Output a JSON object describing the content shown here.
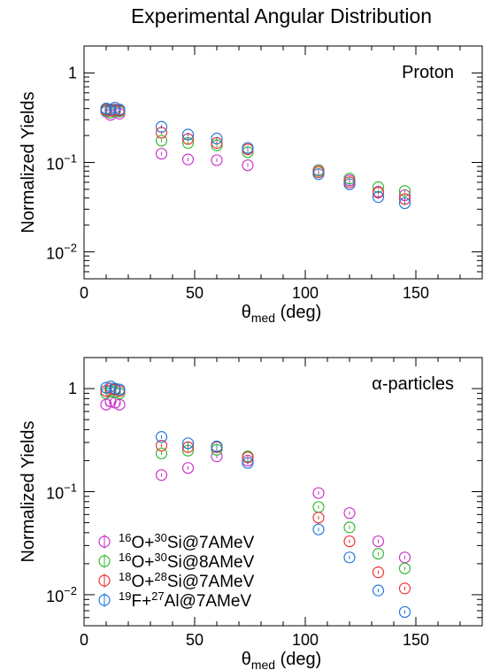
{
  "figure_title": "Experimental Angular Distribution",
  "colors": {
    "16O+30Si@7AMeV": "#cc33cc",
    "16O+30Si@8AMeV": "#33bb33",
    "18O+28Si@7AMeV": "#ee3333",
    "19F+27Al@7AMeV": "#2277dd"
  },
  "legend_entries": [
    {
      "pre": "16",
      "a": "O+",
      "pre2": "30",
      "b": "Si@7AMeV",
      "color": "#cc33cc"
    },
    {
      "pre": "16",
      "a": "O+",
      "pre2": "30",
      "b": "Si@8AMeV",
      "color": "#33bb33"
    },
    {
      "pre": "18",
      "a": "O+",
      "pre2": "28",
      "b": "Si@7AMeV",
      "color": "#ee3333"
    },
    {
      "pre": "19",
      "a": "F+",
      "pre2": "27",
      "b": "Al@7AMeV",
      "color": "#2277dd"
    }
  ],
  "chart_data": [
    {
      "type": "scatter",
      "label": "Proton",
      "ylabel": "Normalized Yields",
      "xlabel_main": "θ",
      "xlabel_sub": "med",
      "xlabel_unit": "(deg)",
      "xlim": [
        0,
        180
      ],
      "ylim": [
        0.005,
        2
      ],
      "yscale": "log",
      "xticks": [
        0,
        50,
        100,
        150
      ],
      "yticks": [
        {
          "v": 1,
          "base": "1",
          "exp": ""
        },
        {
          "v": 0.1,
          "base": "10",
          "exp": "−1"
        },
        {
          "v": 0.01,
          "base": "10",
          "exp": "−2"
        }
      ],
      "series": [
        {
          "key": "16O+30Si@7AMeV",
          "points": [
            [
              10,
              0.37
            ],
            [
              12,
              0.34
            ],
            [
              14,
              0.37
            ],
            [
              16,
              0.35
            ],
            [
              35,
              0.125
            ],
            [
              47,
              0.108
            ],
            [
              60,
              0.106
            ],
            [
              74,
              0.093
            ],
            [
              106,
              0.082
            ],
            [
              120,
              0.063
            ],
            [
              133,
              0.047
            ],
            [
              145,
              0.043
            ]
          ]
        },
        {
          "key": "16O+30Si@8AMeV",
          "points": [
            [
              10,
              0.38
            ],
            [
              12,
              0.36
            ],
            [
              14,
              0.38
            ],
            [
              16,
              0.37
            ],
            [
              35,
              0.175
            ],
            [
              47,
              0.165
            ],
            [
              60,
              0.155
            ],
            [
              74,
              0.13
            ],
            [
              106,
              0.081
            ],
            [
              120,
              0.066
            ],
            [
              133,
              0.053
            ],
            [
              145,
              0.048
            ]
          ]
        },
        {
          "key": "18O+28Si@7AMeV",
          "points": [
            [
              10,
              0.39
            ],
            [
              12,
              0.38
            ],
            [
              14,
              0.39
            ],
            [
              16,
              0.38
            ],
            [
              35,
              0.215
            ],
            [
              47,
              0.183
            ],
            [
              60,
              0.165
            ],
            [
              74,
              0.14
            ],
            [
              106,
              0.078
            ],
            [
              120,
              0.06
            ],
            [
              133,
              0.046
            ],
            [
              145,
              0.039
            ]
          ]
        },
        {
          "key": "19F+27Al@7AMeV",
          "points": [
            [
              10,
              0.4
            ],
            [
              12,
              0.39
            ],
            [
              14,
              0.41
            ],
            [
              16,
              0.39
            ],
            [
              35,
              0.25
            ],
            [
              47,
              0.205
            ],
            [
              60,
              0.185
            ],
            [
              74,
              0.145
            ],
            [
              106,
              0.074
            ],
            [
              120,
              0.057
            ],
            [
              133,
              0.041
            ],
            [
              145,
              0.035
            ]
          ]
        }
      ]
    },
    {
      "type": "scatter",
      "label": "α-particles",
      "ylabel": "Normalized Yields",
      "xlabel_main": "θ",
      "xlabel_sub": "med",
      "xlabel_unit": "(deg)",
      "xlim": [
        0,
        180
      ],
      "ylim": [
        0.005,
        2
      ],
      "yscale": "log",
      "xticks": [
        0,
        50,
        100,
        150
      ],
      "yticks": [
        {
          "v": 1,
          "base": "1",
          "exp": ""
        },
        {
          "v": 0.1,
          "base": "10",
          "exp": "−1"
        },
        {
          "v": 0.01,
          "base": "10",
          "exp": "−2"
        }
      ],
      "series": [
        {
          "key": "16O+30Si@7AMeV",
          "points": [
            [
              10,
              0.7
            ],
            [
              12,
              0.75
            ],
            [
              14,
              0.73
            ],
            [
              16,
              0.7
            ],
            [
              35,
              0.145
            ],
            [
              47,
              0.17
            ],
            [
              60,
              0.22
            ],
            [
              74,
              0.2
            ],
            [
              106,
              0.097
            ],
            [
              120,
              0.062
            ],
            [
              133,
              0.033
            ],
            [
              145,
              0.023
            ]
          ]
        },
        {
          "key": "16O+30Si@8AMeV",
          "points": [
            [
              10,
              0.9
            ],
            [
              12,
              0.95
            ],
            [
              14,
              0.92
            ],
            [
              16,
              0.9
            ],
            [
              35,
              0.235
            ],
            [
              47,
              0.25
            ],
            [
              60,
              0.255
            ],
            [
              74,
              0.22
            ],
            [
              106,
              0.071
            ],
            [
              120,
              0.045
            ],
            [
              133,
              0.025
            ],
            [
              145,
              0.018
            ]
          ]
        },
        {
          "key": "18O+28Si@7AMeV",
          "points": [
            [
              10,
              0.95
            ],
            [
              12,
              1.0
            ],
            [
              14,
              0.98
            ],
            [
              16,
              0.95
            ],
            [
              35,
              0.28
            ],
            [
              47,
              0.27
            ],
            [
              60,
              0.27
            ],
            [
              74,
              0.215
            ],
            [
              106,
              0.056
            ],
            [
              120,
              0.033
            ],
            [
              133,
              0.0165
            ],
            [
              145,
              0.0115
            ]
          ]
        },
        {
          "key": "19F+27Al@7AMeV",
          "points": [
            [
              10,
              1.02
            ],
            [
              12,
              1.05
            ],
            [
              14,
              1.0
            ],
            [
              16,
              0.98
            ],
            [
              35,
              0.34
            ],
            [
              47,
              0.295
            ],
            [
              60,
              0.275
            ],
            [
              74,
              0.19
            ],
            [
              106,
              0.043
            ],
            [
              120,
              0.023
            ],
            [
              133,
              0.011
            ],
            [
              145,
              0.0068
            ]
          ]
        }
      ]
    }
  ]
}
